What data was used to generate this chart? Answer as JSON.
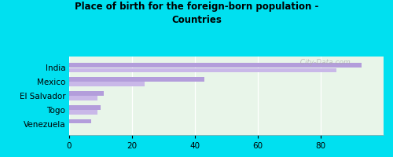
{
  "title": "Place of birth for the foreign-born population -\nCountries",
  "categories": [
    "India",
    "Mexico",
    "El Salvador",
    "Togo",
    "Venezuela"
  ],
  "bars": [
    [
      93,
      43,
      11,
      10,
      7
    ],
    [
      85,
      24,
      9,
      9,
      0
    ]
  ],
  "bar_color1": "#b39ddb",
  "bar_color2": "#c9b8e8",
  "background_color": "#e8f5e9",
  "outer_background": "#00e0f0",
  "xlim": [
    0,
    100
  ],
  "xticks": [
    0,
    20,
    40,
    60,
    80
  ],
  "bar_height": 0.32,
  "watermark": "  City-Data.com"
}
